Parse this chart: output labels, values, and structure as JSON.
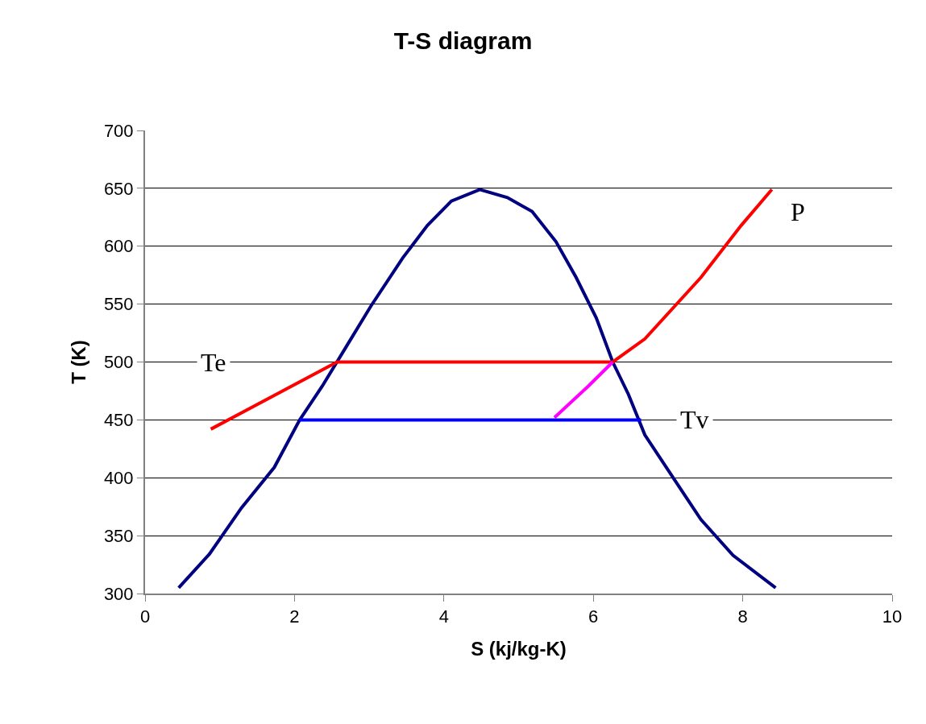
{
  "chart_data": {
    "type": "line",
    "title": "T-S diagram",
    "xlabel": "S (kj/kg-K)",
    "ylabel": "T (K)",
    "xlim": [
      0,
      10
    ],
    "xticks": [
      0,
      2,
      4,
      6,
      8,
      10
    ],
    "ylim": [
      300,
      700
    ],
    "yticks": [
      300,
      350,
      400,
      450,
      500,
      550,
      600,
      650,
      700
    ],
    "grid": "y",
    "marker": "none",
    "line_style": "solid",
    "series": [
      {
        "color": "#000080",
        "x": [
          0.45,
          0.86,
          1.29,
          1.73,
          2.07,
          2.37,
          2.7,
          3.02,
          3.45,
          3.78,
          4.1,
          4.48,
          4.85,
          5.18,
          5.5,
          5.77,
          6.04,
          6.26,
          6.47,
          6.69,
          7.12,
          7.44,
          7.87,
          8.44
        ],
        "values": [
          305,
          334,
          374,
          409,
          450,
          479,
          514,
          548,
          590,
          618,
          639,
          649,
          642,
          630,
          604,
          573,
          538,
          500,
          472,
          437,
          395,
          364,
          333,
          305
        ]
      },
      {
        "color": "#ff0000",
        "x": [
          0.88,
          2.57,
          6.26,
          6.69,
          7.44,
          7.98,
          8.39
        ],
        "values": [
          442,
          500,
          500,
          520,
          573,
          618,
          649
        ]
      },
      {
        "color": "#ff00ff",
        "x": [
          5.48,
          5.93,
          6.26
        ],
        "values": [
          452,
          479,
          500
        ]
      },
      {
        "color": "#0000ff",
        "x": [
          2.07,
          6.64
        ],
        "values": [
          450,
          450
        ]
      }
    ],
    "annotations": [
      "Te",
      "Tv",
      "P"
    ]
  }
}
